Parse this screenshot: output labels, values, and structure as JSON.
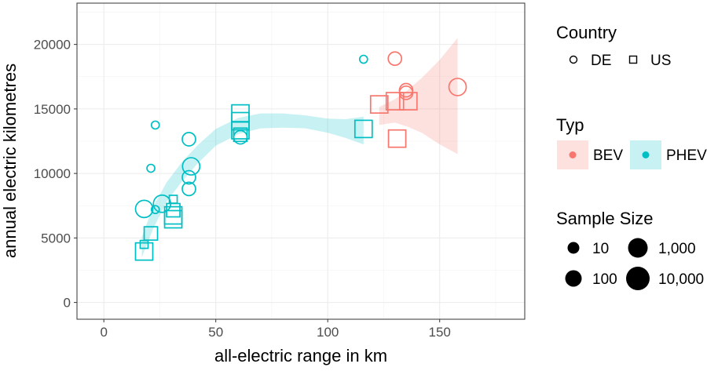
{
  "chart_data": {
    "type": "scatter",
    "title": "",
    "xlabel": "all-electric range in km",
    "ylabel": "annual electric kilometres",
    "xlim": [
      -12,
      188
    ],
    "ylim": [
      -1300,
      23200
    ],
    "x_ticks": [
      0,
      50,
      100,
      150
    ],
    "y_ticks": [
      0,
      5000,
      10000,
      15000,
      20000
    ],
    "x_tick_labels": [
      "0",
      "50",
      "100",
      "150"
    ],
    "y_tick_labels": [
      "0",
      "5000",
      "10000",
      "15000",
      "20000"
    ],
    "grid": true,
    "legend_position": "right",
    "colors": {
      "BEV": "#F8766D",
      "PHEV": "#00BFC4",
      "BEV_band": "#F8766D",
      "PHEV_band": "#00BFC4"
    },
    "series": [
      {
        "name": "PHEV",
        "points": [
          {
            "x": 23,
            "y": 13750,
            "country": "DE",
            "size": 10
          },
          {
            "x": 21,
            "y": 10400,
            "country": "DE",
            "size": 10
          },
          {
            "x": 23,
            "y": 7200,
            "country": "DE",
            "size": 10
          },
          {
            "x": 18,
            "y": 7250,
            "country": "DE",
            "size": 1000
          },
          {
            "x": 26,
            "y": 7650,
            "country": "DE",
            "size": 1000
          },
          {
            "x": 38,
            "y": 12650,
            "country": "DE",
            "size": 100
          },
          {
            "x": 38,
            "y": 9700,
            "country": "DE",
            "size": 100
          },
          {
            "x": 39,
            "y": 10550,
            "country": "DE",
            "size": 1000
          },
          {
            "x": 38,
            "y": 8800,
            "country": "DE",
            "size": 100
          },
          {
            "x": 61,
            "y": 12800,
            "country": "DE",
            "size": 100
          },
          {
            "x": 116,
            "y": 18850,
            "country": "DE",
            "size": 10
          },
          {
            "x": 18,
            "y": 4500,
            "country": "US",
            "size": 10
          },
          {
            "x": 18,
            "y": 3950,
            "country": "US",
            "size": 1000
          },
          {
            "x": 21,
            "y": 5350,
            "country": "US",
            "size": 100
          },
          {
            "x": 31,
            "y": 8000,
            "country": "US",
            "size": 10
          },
          {
            "x": 31,
            "y": 7150,
            "country": "US",
            "size": 100
          },
          {
            "x": 31,
            "y": 6750,
            "country": "US",
            "size": 1000
          },
          {
            "x": 31,
            "y": 6450,
            "country": "US",
            "size": 1000
          },
          {
            "x": 61,
            "y": 14650,
            "country": "US",
            "size": 1000
          },
          {
            "x": 61,
            "y": 14050,
            "country": "US",
            "size": 1000
          },
          {
            "x": 61,
            "y": 13350,
            "country": "US",
            "size": 1000
          },
          {
            "x": 61,
            "y": 13000,
            "country": "US",
            "size": 100
          },
          {
            "x": 116,
            "y": 13450,
            "country": "US",
            "size": 1000
          }
        ]
      },
      {
        "name": "BEV",
        "points": [
          {
            "x": 130,
            "y": 18900,
            "country": "DE",
            "size": 100
          },
          {
            "x": 135,
            "y": 16450,
            "country": "DE",
            "size": 100
          },
          {
            "x": 135,
            "y": 16250,
            "country": "DE",
            "size": 100
          },
          {
            "x": 158,
            "y": 16700,
            "country": "DE",
            "size": 1000
          },
          {
            "x": 123,
            "y": 15350,
            "country": "US",
            "size": 1000
          },
          {
            "x": 130,
            "y": 15600,
            "country": "US",
            "size": 1000
          },
          {
            "x": 136,
            "y": 15600,
            "country": "US",
            "size": 1000
          },
          {
            "x": 131,
            "y": 12700,
            "country": "US",
            "size": 1000
          }
        ]
      }
    ],
    "smooth_bands": [
      {
        "name": "PHEV",
        "x": [
          17,
          22,
          28,
          35,
          42,
          50,
          60,
          70,
          80,
          90,
          100,
          108,
          116
        ],
        "upper": [
          5100,
          7400,
          9300,
          10900,
          12200,
          13450,
          14300,
          14650,
          14650,
          14500,
          14250,
          14200,
          14400
        ],
        "lower": [
          3500,
          5700,
          7800,
          9400,
          10800,
          12150,
          13050,
          13500,
          13550,
          13500,
          13150,
          12750,
          12250
        ]
      },
      {
        "name": "BEV",
        "x": [
          123,
          130,
          136,
          142,
          150,
          158
        ],
        "upper": [
          15150,
          15750,
          16500,
          17400,
          18800,
          20500
        ],
        "lower": [
          13750,
          13950,
          13600,
          13150,
          12250,
          11500
        ]
      }
    ]
  },
  "legend": {
    "country": {
      "title": "Country",
      "items": [
        {
          "label": "DE",
          "shape": "circle"
        },
        {
          "label": "US",
          "shape": "square"
        }
      ]
    },
    "typ": {
      "title": "Typ",
      "items": [
        {
          "label": "BEV",
          "color": "#F8766D"
        },
        {
          "label": "PHEV",
          "color": "#00BFC4"
        }
      ]
    },
    "size": {
      "title": "Sample Size",
      "items": [
        {
          "label": "10",
          "value": 10
        },
        {
          "label": "100",
          "value": 100
        },
        {
          "label": "1,000",
          "value": 1000
        },
        {
          "label": "10,000",
          "value": 10000
        }
      ]
    }
  }
}
